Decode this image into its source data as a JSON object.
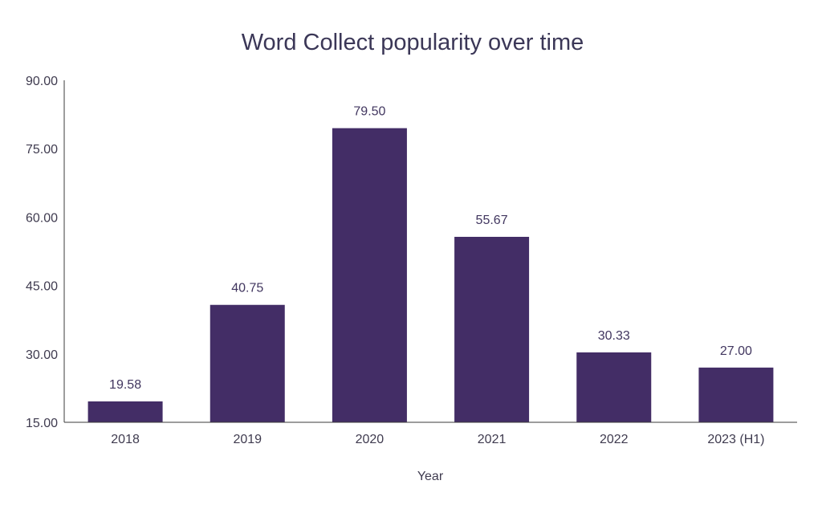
{
  "chart_data": {
    "type": "bar",
    "title": "Word Collect popularity over time",
    "xlabel": "Year",
    "ylabel": "",
    "categories": [
      "2018",
      "2019",
      "2020",
      "2021",
      "2022",
      "2023 (H1)"
    ],
    "values": [
      19.58,
      40.75,
      79.5,
      55.67,
      30.33,
      27.0
    ],
    "value_labels": [
      "19.58",
      "40.75",
      "79.50",
      "55.67",
      "30.33",
      "27.00"
    ],
    "ylim": [
      15,
      90
    ],
    "yticks": [
      15,
      30,
      45,
      60,
      75,
      90
    ],
    "ytick_labels": [
      "15.00",
      "30.00",
      "45.00",
      "60.00",
      "75.00",
      "90.00"
    ],
    "grid": false,
    "legend": "none",
    "colors": {
      "bar": "#432d66",
      "title": "#3b3757",
      "text": "#3f3b4f",
      "axis": "#3b3b3b"
    }
  }
}
